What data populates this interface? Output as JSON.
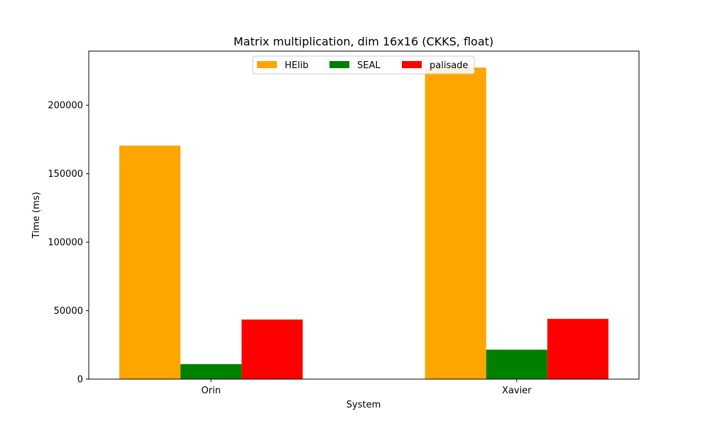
{
  "chart_data": {
    "type": "bar",
    "title": "Matrix multiplication, dim 16x16 (CKKS, float)",
    "xlabel": "System",
    "ylabel": "Time (ms)",
    "categories": [
      "Orin",
      "Xavier"
    ],
    "series": [
      {
        "name": "HElib",
        "color": "#ffa500",
        "values": [
          170500,
          227500
        ]
      },
      {
        "name": "SEAL",
        "color": "#008000",
        "values": [
          11000,
          21500
        ]
      },
      {
        "name": "palisade",
        "color": "#ff0000",
        "values": [
          43500,
          44000
        ]
      }
    ],
    "ylim": [
      0,
      239500
    ],
    "yticks": [
      0,
      50000,
      100000,
      150000,
      200000
    ],
    "ytick_labels": [
      "0",
      "50000",
      "100000",
      "150000",
      "200000"
    ],
    "legend": "upper center",
    "grid": false
  }
}
